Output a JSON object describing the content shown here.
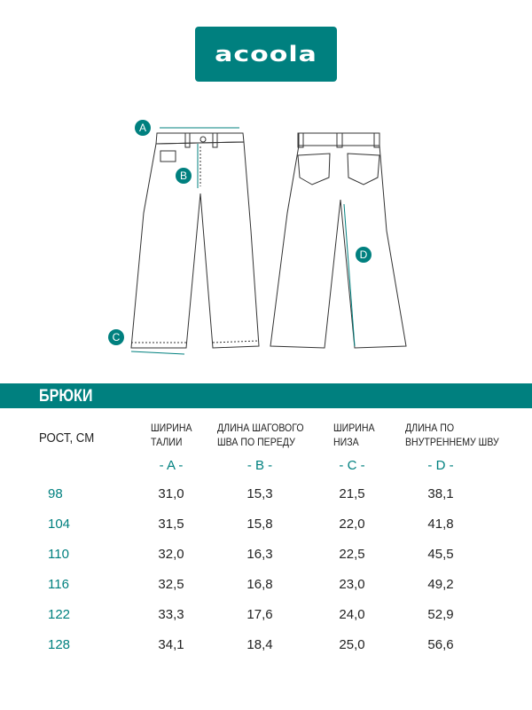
{
  "brand": {
    "logo_text": "acoola",
    "color": "#00807f"
  },
  "diagram": {
    "markers": [
      "A",
      "B",
      "C",
      "D"
    ]
  },
  "section_title": "БРЮКИ",
  "table": {
    "row_header": "РОСТ, СМ",
    "columns": [
      {
        "line1": "ШИРИНА",
        "line2": "ТАЛИИ",
        "letter": "- A -"
      },
      {
        "line1": "ДЛИНА ШАГОВОГО",
        "line2": "ШВА ПО ПЕРЕДУ",
        "letter": "- B -"
      },
      {
        "line1": "ШИРИНА",
        "line2": "НИЗА",
        "letter": "- C -"
      },
      {
        "line1": "ДЛИНА ПО",
        "line2": "ВНУТРЕННЕМУ ШВУ",
        "letter": "- D -"
      }
    ],
    "rows": [
      {
        "height": "98",
        "values": [
          "31,0",
          "15,3",
          "21,5",
          "38,1"
        ]
      },
      {
        "height": "104",
        "values": [
          "31,5",
          "15,8",
          "22,0",
          "41,8"
        ]
      },
      {
        "height": "110",
        "values": [
          "32,0",
          "16,3",
          "22,5",
          "45,5"
        ]
      },
      {
        "height": "116",
        "values": [
          "32,5",
          "16,8",
          "23,0",
          "49,2"
        ]
      },
      {
        "height": "122",
        "values": [
          "33,3",
          "17,6",
          "24,0",
          "52,9"
        ]
      },
      {
        "height": "128",
        "values": [
          "34,1",
          "18,4",
          "25,0",
          "56,6"
        ]
      }
    ]
  }
}
